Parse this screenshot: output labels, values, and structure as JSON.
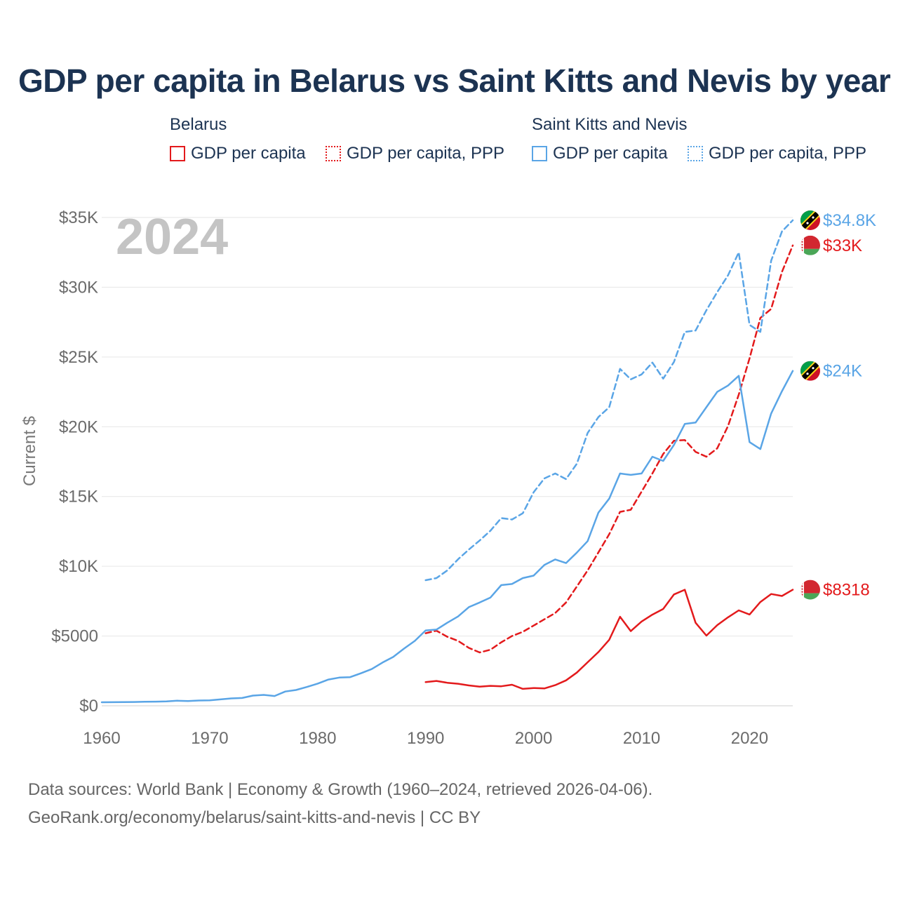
{
  "title": "GDP per capita in Belarus vs Saint Kitts and Nevis by year",
  "legend": {
    "groups": [
      {
        "title": "Belarus",
        "items": [
          {
            "label": "GDP per capita",
            "color": "#e31a1c",
            "style": "solid"
          },
          {
            "label": "GDP per capita, PPP",
            "color": "#e31a1c",
            "style": "dotted"
          }
        ]
      },
      {
        "title": "Saint Kitts and Nevis",
        "items": [
          {
            "label": "GDP per capita",
            "color": "#5aa5e6",
            "style": "solid"
          },
          {
            "label": "GDP per capita, PPP",
            "color": "#5aa5e6",
            "style": "dotted"
          }
        ]
      }
    ]
  },
  "year_label": "2024",
  "footer": {
    "line1": "Data sources: World Bank | Economy & Growth (1960–2024, retrieved 2026-04-06).",
    "line2": "GeoRank.org/economy/belarus/saint-kitts-and-nevis | CC BY"
  },
  "chart_data": {
    "type": "line",
    "ylabel": "Current $",
    "xlabel": "",
    "xlim": [
      1960,
      2024
    ],
    "ylim": [
      0,
      35000
    ],
    "x_ticks": [
      1960,
      1970,
      1980,
      1990,
      2000,
      2010,
      2020
    ],
    "x_tick_labels": [
      "1960",
      "1970",
      "1980",
      "1990",
      "2000",
      "2010",
      "2020"
    ],
    "y_ticks": [
      0,
      5000,
      10000,
      15000,
      20000,
      25000,
      30000,
      35000
    ],
    "y_tick_labels": [
      "$0",
      "$5000",
      "$10K",
      "$15K",
      "$20K",
      "$25K",
      "$30K",
      "$35K"
    ],
    "grid": true,
    "series": [
      {
        "name": "Belarus GDP per capita",
        "country": "Belarus",
        "color": "#e31a1c",
        "dash": "solid",
        "end_label": "$8318",
        "x": [
          1990,
          1991,
          1992,
          1993,
          1994,
          1995,
          1996,
          1997,
          1998,
          1999,
          2000,
          2001,
          2002,
          2003,
          2004,
          2005,
          2006,
          2007,
          2008,
          2009,
          2010,
          2011,
          2012,
          2013,
          2014,
          2015,
          2016,
          2017,
          2018,
          2019,
          2020,
          2021,
          2022,
          2023,
          2024
        ],
        "values": [
          1700,
          1780,
          1650,
          1580,
          1460,
          1370,
          1430,
          1400,
          1510,
          1210,
          1270,
          1240,
          1480,
          1820,
          2380,
          3120,
          3850,
          4730,
          6380,
          5350,
          6040,
          6530,
          6940,
          7980,
          8320,
          5950,
          5030,
          5780,
          6340,
          6840,
          6540,
          7440,
          8010,
          7870,
          8318
        ]
      },
      {
        "name": "Belarus GDP per capita, PPP",
        "country": "Belarus",
        "color": "#e31a1c",
        "dash": "dashed",
        "end_label": "$33K",
        "x": [
          1990,
          1991,
          1992,
          1993,
          1994,
          1995,
          1996,
          1997,
          1998,
          1999,
          2000,
          2001,
          2002,
          2003,
          2004,
          2005,
          2006,
          2007,
          2008,
          2009,
          2010,
          2011,
          2012,
          2013,
          2014,
          2015,
          2016,
          2017,
          2018,
          2019,
          2020,
          2021,
          2022,
          2023,
          2024
        ],
        "values": [
          5200,
          5380,
          4950,
          4650,
          4150,
          3820,
          4020,
          4550,
          5000,
          5300,
          5750,
          6200,
          6650,
          7400,
          8550,
          9700,
          11000,
          12300,
          13900,
          14050,
          15350,
          16650,
          18050,
          19000,
          19050,
          18200,
          17850,
          18450,
          20050,
          22300,
          24900,
          27800,
          28450,
          31100,
          33000
        ]
      },
      {
        "name": "Saint Kitts and Nevis GDP per capita",
        "country": "Saint Kitts and Nevis",
        "color": "#5aa5e6",
        "dash": "solid",
        "end_label": "$24K",
        "x": [
          1960,
          1961,
          1962,
          1963,
          1964,
          1965,
          1966,
          1967,
          1968,
          1969,
          1970,
          1971,
          1972,
          1973,
          1974,
          1975,
          1976,
          1977,
          1978,
          1979,
          1980,
          1981,
          1982,
          1983,
          1984,
          1985,
          1986,
          1987,
          1988,
          1989,
          1990,
          1991,
          1992,
          1993,
          1994,
          1995,
          1996,
          1997,
          1998,
          1999,
          2000,
          2001,
          2002,
          2003,
          2004,
          2005,
          2006,
          2007,
          2008,
          2009,
          2010,
          2011,
          2012,
          2013,
          2014,
          2015,
          2016,
          2017,
          2018,
          2019,
          2020,
          2021,
          2022,
          2023,
          2024
        ],
        "values": [
          250,
          255,
          260,
          270,
          285,
          295,
          310,
          360,
          340,
          375,
          390,
          460,
          530,
          560,
          730,
          780,
          700,
          1020,
          1130,
          1350,
          1590,
          1880,
          2020,
          2050,
          2330,
          2630,
          3100,
          3500,
          4100,
          4650,
          5400,
          5460,
          5950,
          6400,
          7070,
          7400,
          7760,
          8650,
          8730,
          9150,
          9330,
          10100,
          10490,
          10230,
          10980,
          11800,
          13850,
          14850,
          16650,
          16550,
          16650,
          17850,
          17550,
          18700,
          20200,
          20300,
          21400,
          22500,
          22950,
          23650,
          18900,
          18400,
          20950,
          22550,
          24000
        ]
      },
      {
        "name": "Saint Kitts and Nevis GDP per capita, PPP",
        "country": "Saint Kitts and Nevis",
        "color": "#5aa5e6",
        "dash": "dashed",
        "end_label": "$34.8K",
        "x": [
          1990,
          1991,
          1992,
          1993,
          1994,
          1995,
          1996,
          1997,
          1998,
          1999,
          2000,
          2001,
          2002,
          2003,
          2004,
          2005,
          2006,
          2007,
          2008,
          2009,
          2010,
          2011,
          2012,
          2013,
          2014,
          2015,
          2016,
          2017,
          2018,
          2019,
          2020,
          2021,
          2022,
          2023,
          2024
        ],
        "values": [
          9000,
          9150,
          9700,
          10500,
          11200,
          11850,
          12550,
          13450,
          13350,
          13800,
          15300,
          16300,
          16650,
          16250,
          17350,
          19550,
          20700,
          21400,
          24150,
          23400,
          23750,
          24600,
          23450,
          24650,
          26800,
          26900,
          28350,
          29650,
          30850,
          32500,
          27300,
          26800,
          31900,
          34000,
          34800
        ]
      }
    ]
  }
}
